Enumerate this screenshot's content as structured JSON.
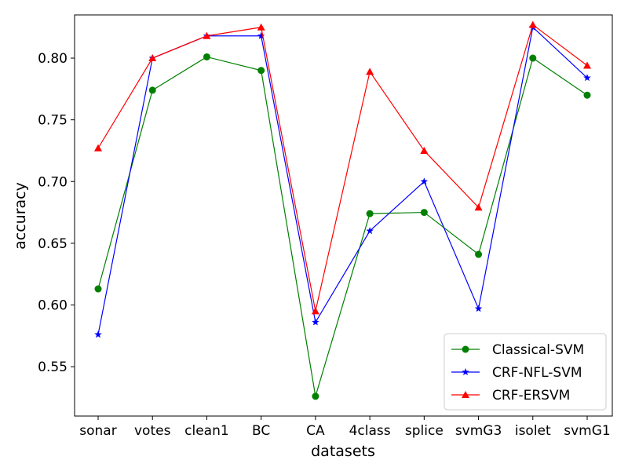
{
  "chart_data": {
    "type": "line",
    "title": "",
    "xlabel": "datasets",
    "ylabel": "accuracy",
    "categories": [
      "sonar",
      "votes",
      "clean1",
      "BC",
      "CA",
      "4class",
      "splice",
      "svmG3",
      "isolet",
      "svmG1"
    ],
    "ylim": [
      0.51,
      0.835
    ],
    "yticks": [
      "0.55",
      "0.60",
      "0.65",
      "0.70",
      "0.75",
      "0.80"
    ],
    "grid": false,
    "legend_position": "lower-right",
    "series": [
      {
        "name": "Classical-SVM",
        "color": "#008000",
        "marker": "circle",
        "values": [
          0.613,
          0.774,
          0.801,
          0.79,
          0.526,
          0.674,
          0.675,
          0.641,
          0.8,
          0.77
        ]
      },
      {
        "name": "CRF-NFL-SVM",
        "color": "#0000ff",
        "marker": "star",
        "values": [
          0.576,
          0.8,
          0.818,
          0.818,
          0.586,
          0.66,
          0.7,
          0.597,
          0.825,
          0.784
        ]
      },
      {
        "name": "CRF-ERSVM",
        "color": "#ff0000",
        "marker": "triangle",
        "values": [
          0.727,
          0.8,
          0.818,
          0.825,
          0.595,
          0.789,
          0.725,
          0.679,
          0.827,
          0.794
        ]
      }
    ]
  }
}
